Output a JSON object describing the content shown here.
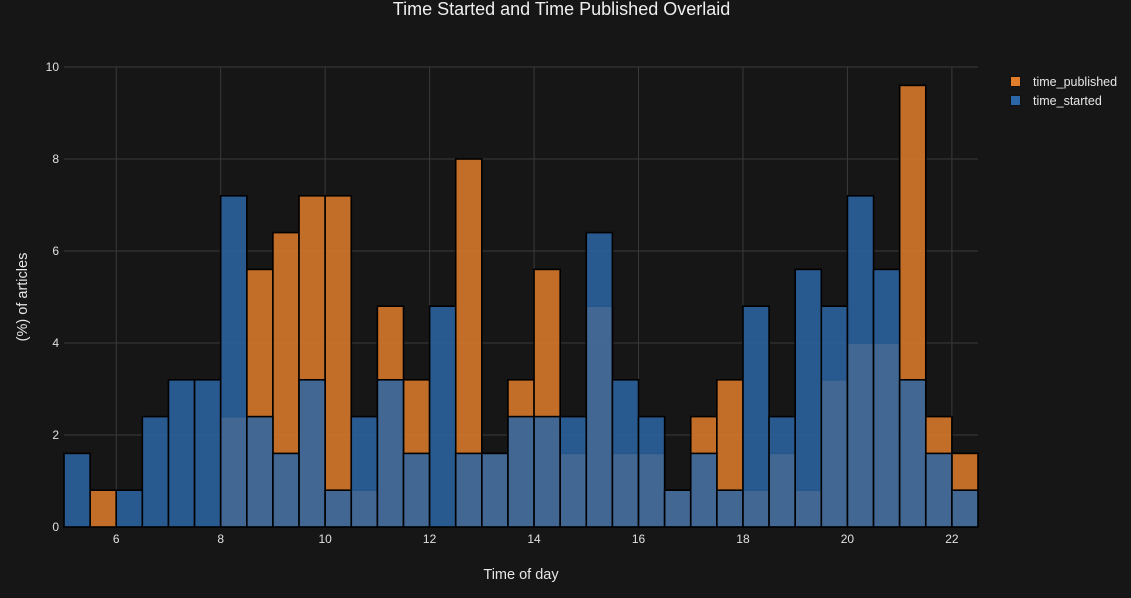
{
  "chart_data": {
    "type": "bar",
    "title": "Time Started and Time Published Overlaid",
    "xlabel": "Time of day",
    "ylabel": "(%) of articles",
    "xlim": [
      5,
      22.5
    ],
    "ylim": [
      0,
      10
    ],
    "bin_width": 0.5,
    "xticks": [
      6,
      8,
      10,
      12,
      14,
      16,
      18,
      20,
      22
    ],
    "yticks": [
      0,
      2,
      4,
      6,
      8,
      10
    ],
    "grid": true,
    "legend_position": "top-right",
    "barmode": "overlay",
    "x": [
      5.25,
      5.75,
      6.25,
      6.75,
      7.25,
      7.75,
      8.25,
      8.75,
      9.25,
      9.75,
      10.25,
      10.75,
      11.25,
      11.75,
      12.25,
      12.75,
      13.25,
      13.75,
      14.25,
      14.75,
      15.25,
      15.75,
      16.25,
      16.75,
      17.25,
      17.75,
      18.25,
      18.75,
      19.25,
      19.75,
      20.25,
      20.75,
      21.25,
      21.75,
      22.25
    ],
    "series": [
      {
        "name": "time_published",
        "color": "#e07e2c",
        "values": [
          0,
          0.8,
          0,
          0,
          0,
          0,
          2.4,
          5.6,
          6.4,
          7.2,
          7.2,
          0.8,
          4.8,
          3.2,
          0,
          8.0,
          1.6,
          3.2,
          5.6,
          1.6,
          4.8,
          1.6,
          1.6,
          0.8,
          2.4,
          3.2,
          0.8,
          1.6,
          0.8,
          3.2,
          4.0,
          4.0,
          9.6,
          2.4,
          1.6
        ]
      },
      {
        "name": "time_started",
        "color": "#2b66a6",
        "values": [
          1.6,
          0,
          0.8,
          2.4,
          3.2,
          3.2,
          7.2,
          2.4,
          1.6,
          3.2,
          0.8,
          2.4,
          3.2,
          1.6,
          4.8,
          1.6,
          1.6,
          2.4,
          2.4,
          2.4,
          6.4,
          3.2,
          2.4,
          0.8,
          1.6,
          0.8,
          4.8,
          2.4,
          5.6,
          4.8,
          7.2,
          5.6,
          3.2,
          1.6,
          0.8
        ]
      }
    ]
  }
}
